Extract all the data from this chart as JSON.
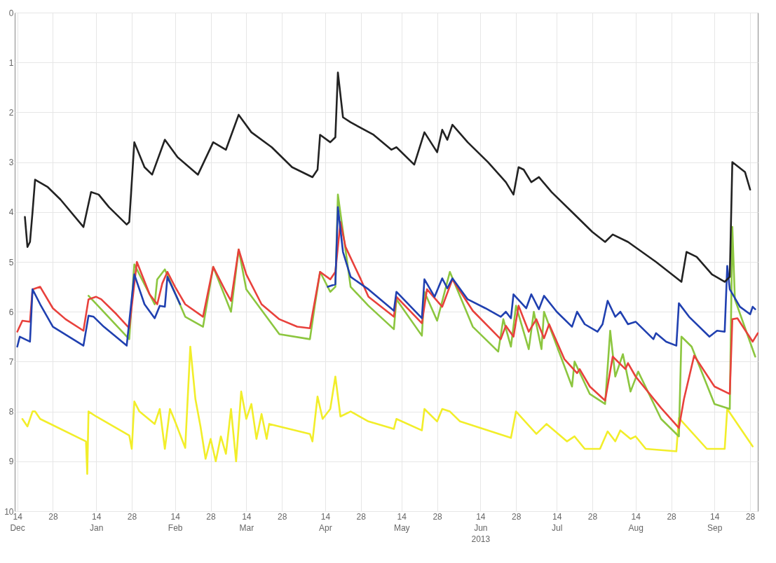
{
  "chart_data": {
    "type": "line",
    "xlim": [
      "2012-12-13",
      "2013-10-01"
    ],
    "ylim": [
      10,
      0
    ],
    "yticks": [
      0,
      1,
      2,
      3,
      4,
      5,
      6,
      7,
      8,
      9,
      10
    ],
    "grid": true,
    "marker": "none",
    "line_style": "solid",
    "xticks": [
      {
        "value": "2012-12-14",
        "label": "14\nDec"
      },
      {
        "value": "2012-12-28",
        "label": "28"
      },
      {
        "value": "2013-01-14",
        "label": "14\nJan"
      },
      {
        "value": "2013-01-28",
        "label": "28"
      },
      {
        "value": "2013-02-14",
        "label": "14\nFeb"
      },
      {
        "value": "2013-02-28",
        "label": "28"
      },
      {
        "value": "2013-03-14",
        "label": "14\nMar"
      },
      {
        "value": "2013-03-28",
        "label": "28"
      },
      {
        "value": "2013-04-14",
        "label": "14\nApr"
      },
      {
        "value": "2013-04-28",
        "label": "28"
      },
      {
        "value": "2013-05-14",
        "label": "14\nMay"
      },
      {
        "value": "2013-05-28",
        "label": "28"
      },
      {
        "value": "2013-06-14",
        "label": "14\nJun\n2013"
      },
      {
        "value": "2013-06-28",
        "label": "28"
      },
      {
        "value": "2013-07-14",
        "label": "14\nJul"
      },
      {
        "value": "2013-07-28",
        "label": "28"
      },
      {
        "value": "2013-08-14",
        "label": "14\nAug"
      },
      {
        "value": "2013-08-28",
        "label": "28"
      },
      {
        "value": "2013-09-14",
        "label": "14\nSep"
      },
      {
        "value": "2013-09-28",
        "label": "28"
      }
    ],
    "series": [
      {
        "color": "#f2ee2a",
        "x": [
          "2012-12-16",
          "2012-12-18",
          "2012-12-20",
          "2012-12-21",
          "2012-12-23",
          "2013-01-10",
          "2013-01-10T12:00",
          "2013-01-11",
          "2013-01-14",
          "2013-01-27",
          "2013-01-28",
          "2013-01-29",
          "2013-01-31",
          "2013-02-06",
          "2013-02-08",
          "2013-02-10",
          "2013-02-12",
          "2013-02-14",
          "2013-02-18",
          "2013-02-20",
          "2013-02-22",
          "2013-02-24",
          "2013-02-26",
          "2013-02-28",
          "2013-03-02",
          "2013-03-04",
          "2013-03-06",
          "2013-03-08",
          "2013-03-10",
          "2013-03-12",
          "2013-03-14",
          "2013-03-16",
          "2013-03-18",
          "2013-03-20",
          "2013-03-22",
          "2013-03-23",
          "2013-04-08",
          "2013-04-09",
          "2013-04-11",
          "2013-04-13",
          "2013-04-16",
          "2013-04-18",
          "2013-04-20",
          "2013-04-24",
          "2013-05-01",
          "2013-05-11",
          "2013-05-12",
          "2013-05-22",
          "2013-05-23",
          "2013-05-28",
          "2013-05-30",
          "2013-06-02",
          "2013-06-06",
          "2013-06-26",
          "2013-06-28",
          "2013-07-06",
          "2013-07-10",
          "2013-07-18",
          "2013-07-21",
          "2013-07-25",
          "2013-07-31",
          "2013-08-03",
          "2013-08-06",
          "2013-08-08",
          "2013-08-12",
          "2013-08-14",
          "2013-08-18",
          "2013-08-30",
          "2013-08-31",
          "2013-09-11",
          "2013-09-18",
          "2013-09-19",
          "2013-09-29"
        ],
        "values": [
          8.15,
          8.3,
          8.0,
          8.0,
          8.15,
          8.6,
          9.25,
          8.0,
          8.1,
          8.48,
          8.75,
          7.8,
          8.0,
          8.25,
          7.95,
          8.75,
          7.95,
          8.2,
          8.73,
          6.7,
          7.75,
          8.3,
          8.95,
          8.55,
          9.0,
          8.5,
          8.85,
          7.95,
          9.0,
          7.6,
          8.15,
          7.85,
          8.55,
          8.05,
          8.55,
          8.25,
          8.45,
          8.6,
          7.7,
          8.15,
          7.95,
          7.3,
          8.1,
          8.0,
          8.2,
          8.35,
          8.15,
          8.38,
          7.95,
          8.2,
          7.95,
          8.0,
          8.2,
          8.53,
          8.0,
          8.45,
          8.25,
          8.6,
          8.5,
          8.75,
          8.75,
          8.4,
          8.6,
          8.38,
          8.55,
          8.5,
          8.75,
          8.8,
          8.13,
          8.75,
          8.75,
          7.95,
          8.7
        ]
      },
      {
        "color": "#8cc63f",
        "x": [
          "2013-01-11",
          "2013-01-16",
          "2013-01-27",
          "2013-01-29",
          "2013-02-06",
          "2013-02-07",
          "2013-02-10",
          "2013-02-18",
          "2013-02-25",
          "2013-03-01",
          "2013-03-08",
          "2013-03-11",
          "2013-03-14",
          "2013-03-27",
          "2013-04-08",
          "2013-04-10",
          "2013-04-12",
          "2013-04-16",
          "2013-04-18",
          "2013-04-19",
          "2013-04-24",
          "2013-05-01",
          "2013-05-11",
          "2013-05-12",
          "2013-05-22",
          "2013-05-23",
          "2013-05-28",
          "2013-06-02",
          "2013-06-11",
          "2013-06-21",
          "2013-06-23",
          "2013-06-26",
          "2013-06-28",
          "2013-07-03",
          "2013-07-05",
          "2013-07-08",
          "2013-07-09",
          "2013-07-20",
          "2013-07-21",
          "2013-07-27",
          "2013-08-02",
          "2013-08-04",
          "2013-08-06",
          "2013-08-09",
          "2013-08-12",
          "2013-08-15",
          "2013-08-24",
          "2013-08-31",
          "2013-09-01",
          "2013-09-05",
          "2013-09-14",
          "2013-09-20",
          "2013-09-21",
          "2013-09-22",
          "2013-09-30"
        ],
        "values": [
          5.68,
          5.95,
          6.55,
          5.05,
          5.85,
          5.35,
          5.15,
          6.1,
          6.3,
          5.1,
          6.0,
          4.75,
          5.55,
          6.45,
          6.55,
          5.85,
          5.2,
          5.6,
          5.5,
          3.65,
          5.5,
          5.88,
          6.35,
          5.75,
          6.48,
          5.6,
          6.18,
          5.2,
          6.3,
          6.8,
          6.15,
          6.7,
          5.88,
          6.75,
          6.0,
          6.75,
          6.0,
          7.5,
          7.0,
          7.65,
          7.85,
          6.38,
          7.3,
          6.85,
          7.6,
          7.2,
          8.15,
          8.5,
          6.5,
          6.7,
          7.85,
          7.95,
          4.3,
          5.75,
          6.9
        ]
      },
      {
        "color": "#e8413c",
        "x": [
          "2012-12-14",
          "2012-12-16",
          "2012-12-19",
          "2012-12-20",
          "2012-12-23",
          "2012-12-28",
          "2013-01-02",
          "2013-01-09",
          "2013-01-11",
          "2013-01-14",
          "2013-01-16",
          "2013-01-22",
          "2013-01-27",
          "2013-01-30",
          "2013-02-04",
          "2013-02-07",
          "2013-02-09",
          "2013-02-11",
          "2013-02-14",
          "2013-02-18",
          "2013-02-25",
          "2013-03-01",
          "2013-03-06",
          "2013-03-08",
          "2013-03-11",
          "2013-03-14",
          "2013-03-20",
          "2013-03-27",
          "2013-04-03",
          "2013-04-08",
          "2013-04-12",
          "2013-04-16",
          "2013-04-18",
          "2013-04-20",
          "2013-04-22",
          "2013-04-28",
          "2013-05-01",
          "2013-05-11",
          "2013-05-12",
          "2013-05-22",
          "2013-05-24",
          "2013-05-30",
          "2013-06-03",
          "2013-06-11",
          "2013-06-22",
          "2013-06-24",
          "2013-06-27",
          "2013-06-29",
          "2013-07-03",
          "2013-07-06",
          "2013-07-09",
          "2013-07-11",
          "2013-07-17",
          "2013-07-22",
          "2013-07-23",
          "2013-07-27",
          "2013-08-02",
          "2013-08-05",
          "2013-08-10",
          "2013-08-11",
          "2013-08-14",
          "2013-08-24",
          "2013-08-31",
          "2013-09-02",
          "2013-09-06",
          "2013-09-14",
          "2013-09-20",
          "2013-09-21",
          "2013-09-23",
          "2013-09-29",
          "2013-10-01"
        ],
        "values": [
          6.4,
          6.18,
          6.2,
          5.55,
          5.5,
          5.93,
          6.15,
          6.38,
          5.75,
          5.7,
          5.75,
          6.05,
          6.33,
          5.0,
          5.65,
          5.85,
          5.43,
          5.2,
          5.5,
          5.85,
          6.1,
          5.1,
          5.6,
          5.78,
          4.75,
          5.25,
          5.85,
          6.15,
          6.3,
          6.33,
          5.2,
          5.35,
          5.2,
          4.2,
          4.7,
          5.35,
          5.7,
          6.1,
          5.7,
          6.23,
          5.55,
          5.9,
          5.35,
          5.98,
          6.55,
          6.28,
          6.5,
          5.88,
          6.4,
          6.15,
          6.53,
          6.25,
          6.95,
          7.23,
          7.15,
          7.5,
          7.78,
          6.9,
          7.15,
          7.03,
          7.3,
          7.93,
          8.33,
          7.75,
          6.88,
          7.5,
          7.65,
          6.15,
          6.13,
          6.6,
          6.43
        ]
      },
      {
        "color": "#2040b0",
        "x": [
          "2012-12-14",
          "2012-12-15",
          "2012-12-19",
          "2012-12-20",
          "2012-12-23",
          "2012-12-28",
          "2013-01-09",
          "2013-01-11",
          "2013-01-13",
          "2013-01-17",
          "2013-01-26",
          "2013-01-29",
          "2013-02-02",
          "2013-02-06",
          "2013-02-08",
          "2013-02-10",
          "2013-02-11",
          "2013-02-16",
          "2013-03-15",
          "2013-04-15",
          "2013-04-18",
          "2013-04-19",
          "2013-04-21",
          "2013-04-24",
          "2013-05-01",
          "2013-05-11",
          "2013-05-12",
          "2013-05-22",
          "2013-05-23",
          "2013-05-27",
          "2013-05-30",
          "2013-06-01",
          "2013-06-03",
          "2013-06-09",
          "2013-06-16",
          "2013-06-22",
          "2013-06-24",
          "2013-06-26",
          "2013-06-27",
          "2013-07-02",
          "2013-07-04",
          "2013-07-07",
          "2013-07-09",
          "2013-07-14",
          "2013-07-20",
          "2013-07-22",
          "2013-07-25",
          "2013-07-30",
          "2013-08-01",
          "2013-08-03",
          "2013-08-06",
          "2013-08-08",
          "2013-08-11",
          "2013-08-14",
          "2013-08-21",
          "2013-08-22",
          "2013-08-26",
          "2013-08-30",
          "2013-08-31",
          "2013-09-04",
          "2013-09-12",
          "2013-09-15",
          "2013-09-18",
          "2013-09-19",
          "2013-09-20",
          "2013-09-24",
          "2013-09-28",
          "2013-09-29",
          "2013-09-30"
        ],
        "values": [
          6.7,
          6.5,
          6.6,
          5.55,
          5.85,
          6.3,
          6.68,
          6.08,
          6.1,
          6.3,
          6.68,
          5.25,
          5.85,
          6.13,
          5.88,
          5.9,
          5.3,
          5.85,
          null,
          5.5,
          5.45,
          3.9,
          4.8,
          5.3,
          5.55,
          5.98,
          5.6,
          6.13,
          5.35,
          5.7,
          5.33,
          5.53,
          5.33,
          5.75,
          5.93,
          6.1,
          6.0,
          6.13,
          5.65,
          5.93,
          5.65,
          5.95,
          5.68,
          6.0,
          6.3,
          6.0,
          6.25,
          6.4,
          6.25,
          5.78,
          6.1,
          6.0,
          6.25,
          6.2,
          6.55,
          6.43,
          6.6,
          6.68,
          5.83,
          6.1,
          6.5,
          6.38,
          6.4,
          5.08,
          5.55,
          5.9,
          6.05,
          5.9,
          5.95
        ]
      },
      {
        "color": "#222222",
        "x": [
          "2012-12-17",
          "2012-12-18",
          "2012-12-19",
          "2012-12-20",
          "2012-12-21",
          "2012-12-26",
          "2012-12-31",
          "2013-01-09",
          "2013-01-12",
          "2013-01-15",
          "2013-01-19",
          "2013-01-26",
          "2013-01-27",
          "2013-01-29",
          "2013-02-02",
          "2013-02-05",
          "2013-02-10",
          "2013-02-15",
          "2013-02-23",
          "2013-03-01",
          "2013-03-06",
          "2013-03-11",
          "2013-03-16",
          "2013-03-24",
          "2013-04-01",
          "2013-04-09",
          "2013-04-11",
          "2013-04-12",
          "2013-04-16",
          "2013-04-18",
          "2013-04-19",
          "2013-04-21",
          "2013-04-24",
          "2013-05-03",
          "2013-05-10",
          "2013-05-12",
          "2013-05-19",
          "2013-05-23",
          "2013-05-28",
          "2013-05-30",
          "2013-06-01",
          "2013-06-03",
          "2013-06-09",
          "2013-06-17",
          "2013-06-24",
          "2013-06-27",
          "2013-06-29",
          "2013-07-01",
          "2013-07-04",
          "2013-07-07",
          "2013-07-12",
          "2013-07-20",
          "2013-07-28",
          "2013-08-02",
          "2013-08-05",
          "2013-08-11",
          "2013-08-22",
          "2013-09-01",
          "2013-09-03",
          "2013-09-07",
          "2013-09-13",
          "2013-09-18",
          "2013-09-20",
          "2013-09-21",
          "2013-09-26",
          "2013-09-28"
        ],
        "values": [
          4.1,
          4.7,
          4.6,
          4.0,
          3.35,
          3.5,
          3.75,
          4.3,
          3.6,
          3.65,
          3.9,
          4.25,
          4.2,
          2.6,
          3.1,
          3.25,
          2.55,
          2.9,
          3.25,
          2.6,
          2.75,
          2.05,
          2.4,
          2.7,
          3.1,
          3.3,
          3.15,
          2.45,
          2.6,
          2.5,
          1.2,
          2.1,
          2.2,
          2.45,
          2.75,
          2.7,
          3.05,
          2.4,
          2.8,
          2.35,
          2.55,
          2.25,
          2.6,
          3.0,
          3.4,
          3.65,
          3.1,
          3.15,
          3.4,
          3.3,
          3.6,
          4.0,
          4.4,
          4.6,
          4.45,
          4.6,
          5.0,
          5.4,
          4.8,
          4.9,
          5.25,
          5.4,
          5.3,
          3.0,
          3.2,
          3.55
        ]
      }
    ]
  }
}
